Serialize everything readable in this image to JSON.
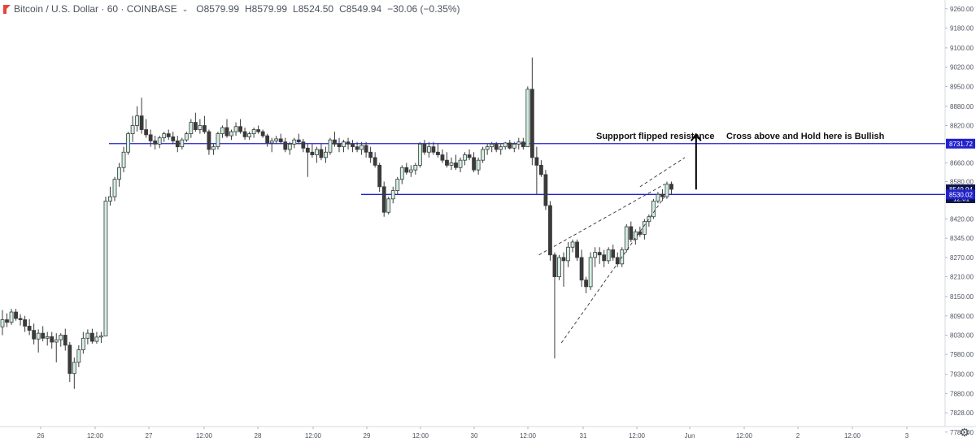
{
  "header": {
    "symbol": "Bitcoin / U.S. Dollar · 60 · COINBASE",
    "open": "O8579.99",
    "high": "H8579.99",
    "low": "L8524.50",
    "close": "C8549.94",
    "change": "−30.06 (−0.35%)"
  },
  "colors": {
    "up": "#d1f0e2",
    "down": "#3a3a3a",
    "wick": "#3a3a3a",
    "level_line": "#2222cc",
    "grid": "#f0f3fa",
    "axis_text": "#4c525e",
    "price_tag": "#0a1450"
  },
  "icons": {
    "settings": "gear-icon",
    "logo": "tradingview-logo-icon"
  },
  "chart_data": {
    "type": "candlestick",
    "title": "",
    "y_ticks": [
      9260,
      9180,
      9100,
      9020,
      8950,
      8880,
      8820,
      8731.72,
      8660,
      8580,
      8530.02,
      8420,
      8345,
      8270,
      8210,
      8150,
      8090,
      8030,
      7980,
      7930,
      7880,
      7828,
      7780
    ],
    "y_tick_labels": [
      "9260.00",
      "9180.00",
      "9100.00",
      "9020.00",
      "8950.00",
      "8880.00",
      "8820.00",
      "8731.72",
      "8660.00",
      "8580.00",
      "8530.02",
      "8420.00",
      "8345.00",
      "8270.00",
      "8210.00",
      "8150.00",
      "8090.00",
      "8030.00",
      "7980.00",
      "7930.00",
      "7880.00",
      "7828.00",
      "7780.00"
    ],
    "x_tick_labels": [
      "26",
      "12:00",
      "27",
      "12:00",
      "28",
      "12:00",
      "29",
      "12:00",
      "30",
      "12:00",
      "31",
      "12:00",
      "Jun",
      "12:00",
      "2",
      "12:00",
      "3"
    ],
    "price_labels": [
      {
        "value": 8731.72,
        "text": "8731.72",
        "style": "level"
      },
      {
        "value": 8549.94,
        "text": "8549.94",
        "style": "last"
      },
      {
        "value": 8530.02,
        "text": "8530.02",
        "style": "level"
      }
    ],
    "countdown": "12:01",
    "horizontal_lines": [
      8731.72,
      8530.02
    ],
    "candles": [
      [
        8056,
        8108,
        8030,
        8078
      ],
      [
        8078,
        8098,
        8055,
        8070
      ],
      [
        8070,
        8112,
        8062,
        8102
      ],
      [
        8102,
        8112,
        8075,
        8082
      ],
      [
        8082,
        8095,
        8060,
        8078
      ],
      [
        8078,
        8090,
        8040,
        8058
      ],
      [
        8058,
        8080,
        8030,
        8045
      ],
      [
        8045,
        8066,
        8006,
        8020
      ],
      [
        8020,
        8048,
        7985,
        8036
      ],
      [
        8036,
        8058,
        8014,
        8022
      ],
      [
        8022,
        8040,
        8003,
        8026
      ],
      [
        8026,
        8040,
        7995,
        8012
      ],
      [
        8012,
        8036,
        7960,
        8018
      ],
      [
        8018,
        8036,
        8000,
        8030
      ],
      [
        8030,
        8050,
        7990,
        8004
      ],
      [
        8004,
        8012,
        7910,
        7932
      ],
      [
        7932,
        7972,
        7892,
        7960
      ],
      [
        7960,
        8004,
        7948,
        7992
      ],
      [
        7992,
        8040,
        7982,
        8022
      ],
      [
        8022,
        8048,
        8006,
        8036
      ],
      [
        8036,
        8050,
        8008,
        8014
      ],
      [
        8014,
        8040,
        8008,
        8025
      ],
      [
        8025,
        8040,
        8010,
        8028
      ],
      [
        8028,
        8520,
        8028,
        8500
      ],
      [
        8500,
        8560,
        8480,
        8520
      ],
      [
        8520,
        8600,
        8500,
        8590
      ],
      [
        8590,
        8660,
        8560,
        8640
      ],
      [
        8640,
        8720,
        8620,
        8700
      ],
      [
        8700,
        8790,
        8690,
        8780
      ],
      [
        8780,
        8850,
        8740,
        8820
      ],
      [
        8820,
        8880,
        8790,
        8850
      ],
      [
        8850,
        8910,
        8780,
        8800
      ],
      [
        8800,
        8840,
        8760,
        8775
      ],
      [
        8775,
        8800,
        8720,
        8745
      ],
      [
        8745,
        8770,
        8710,
        8730
      ],
      [
        8730,
        8770,
        8715,
        8760
      ],
      [
        8760,
        8790,
        8740,
        8780
      ],
      [
        8780,
        8800,
        8750,
        8765
      ],
      [
        8765,
        8790,
        8730,
        8745
      ],
      [
        8745,
        8770,
        8700,
        8720
      ],
      [
        8720,
        8760,
        8710,
        8750
      ],
      [
        8750,
        8790,
        8740,
        8780
      ],
      [
        8780,
        8840,
        8760,
        8830
      ],
      [
        8830,
        8860,
        8790,
        8800
      ],
      [
        8800,
        8840,
        8780,
        8820
      ],
      [
        8820,
        8850,
        8780,
        8790
      ],
      [
        8790,
        8800,
        8690,
        8710
      ],
      [
        8710,
        8730,
        8690,
        8720
      ],
      [
        8720,
        8790,
        8710,
        8780
      ],
      [
        8780,
        8820,
        8760,
        8810
      ],
      [
        8810,
        8840,
        8760,
        8770
      ],
      [
        8770,
        8800,
        8750,
        8790
      ],
      [
        8790,
        8830,
        8770,
        8815
      ],
      [
        8815,
        8840,
        8780,
        8790
      ],
      [
        8790,
        8810,
        8750,
        8765
      ],
      [
        8765,
        8790,
        8750,
        8780
      ],
      [
        8780,
        8810,
        8760,
        8800
      ],
      [
        8800,
        8820,
        8780,
        8790
      ],
      [
        8790,
        8800,
        8760,
        8770
      ],
      [
        8770,
        8780,
        8720,
        8735
      ],
      [
        8735,
        8760,
        8700,
        8745
      ],
      [
        8745,
        8770,
        8730,
        8755
      ],
      [
        8755,
        8780,
        8730,
        8740
      ],
      [
        8740,
        8760,
        8700,
        8710
      ],
      [
        8710,
        8740,
        8690,
        8730
      ],
      [
        8730,
        8760,
        8715,
        8750
      ],
      [
        8750,
        8780,
        8730,
        8740
      ],
      [
        8740,
        8755,
        8700,
        8715
      ],
      [
        8715,
        8730,
        8600,
        8700
      ],
      [
        8700,
        8730,
        8680,
        8690
      ],
      [
        8690,
        8720,
        8660,
        8710
      ],
      [
        8710,
        8730,
        8670,
        8680
      ],
      [
        8680,
        8720,
        8660,
        8700
      ],
      [
        8700,
        8760,
        8690,
        8750
      ],
      [
        8750,
        8790,
        8720,
        8730
      ],
      [
        8730,
        8760,
        8700,
        8720
      ],
      [
        8720,
        8750,
        8700,
        8740
      ],
      [
        8740,
        8760,
        8710,
        8730
      ],
      [
        8730,
        8750,
        8700,
        8720
      ],
      [
        8720,
        8740,
        8700,
        8710
      ],
      [
        8710,
        8740,
        8690,
        8725
      ],
      [
        8725,
        8740,
        8680,
        8700
      ],
      [
        8700,
        8720,
        8660,
        8680
      ],
      [
        8680,
        8700,
        8640,
        8650
      ],
      [
        8650,
        8660,
        8540,
        8560
      ],
      [
        8560,
        8580,
        8430,
        8450
      ],
      [
        8450,
        8520,
        8440,
        8510
      ],
      [
        8510,
        8560,
        8490,
        8545
      ],
      [
        8545,
        8600,
        8530,
        8590
      ],
      [
        8590,
        8650,
        8570,
        8640
      ],
      [
        8640,
        8660,
        8610,
        8620
      ],
      [
        8620,
        8650,
        8600,
        8630
      ],
      [
        8630,
        8660,
        8610,
        8650
      ],
      [
        8650,
        8740,
        8640,
        8730
      ],
      [
        8730,
        8750,
        8690,
        8700
      ],
      [
        8700,
        8740,
        8680,
        8720
      ],
      [
        8720,
        8740,
        8690,
        8700
      ],
      [
        8700,
        8730,
        8680,
        8690
      ],
      [
        8690,
        8710,
        8660,
        8670
      ],
      [
        8670,
        8700,
        8640,
        8650
      ],
      [
        8650,
        8680,
        8630,
        8660
      ],
      [
        8660,
        8690,
        8630,
        8640
      ],
      [
        8640,
        8680,
        8620,
        8670
      ],
      [
        8670,
        8700,
        8650,
        8690
      ],
      [
        8690,
        8710,
        8670,
        8680
      ],
      [
        8680,
        8700,
        8620,
        8630
      ],
      [
        8630,
        8680,
        8610,
        8670
      ],
      [
        8670,
        8720,
        8660,
        8710
      ],
      [
        8710,
        8730,
        8690,
        8720
      ],
      [
        8720,
        8740,
        8700,
        8730
      ],
      [
        8730,
        8740,
        8700,
        8710
      ],
      [
        8710,
        8730,
        8690,
        8720
      ],
      [
        8720,
        8740,
        8710,
        8735
      ],
      [
        8735,
        8750,
        8710,
        8715
      ],
      [
        8715,
        8740,
        8700,
        8730
      ],
      [
        8730,
        8760,
        8710,
        8740
      ],
      [
        8740,
        8760,
        8710,
        8720
      ],
      [
        8720,
        8950,
        8720,
        8940
      ],
      [
        8940,
        9060,
        8650,
        8680
      ],
      [
        8680,
        8720,
        8530,
        8650
      ],
      [
        8650,
        8670,
        8600,
        8610
      ],
      [
        8610,
        8630,
        8460,
        8480
      ],
      [
        8480,
        8500,
        8260,
        8280
      ],
      [
        8280,
        8290,
        7970,
        8210
      ],
      [
        8210,
        8280,
        8200,
        8270
      ],
      [
        8270,
        8290,
        8180,
        8260
      ],
      [
        8260,
        8330,
        8240,
        8310
      ],
      [
        8310,
        8340,
        8290,
        8330
      ],
      [
        8330,
        8340,
        8260,
        8270
      ],
      [
        8270,
        8300,
        8180,
        8200
      ],
      [
        8200,
        8210,
        8160,
        8180
      ],
      [
        8180,
        8290,
        8170,
        8270
      ],
      [
        8270,
        8310,
        8240,
        8290
      ],
      [
        8290,
        8310,
        8250,
        8280
      ],
      [
        8280,
        8300,
        8240,
        8260
      ],
      [
        8260,
        8310,
        8250,
        8300
      ],
      [
        8300,
        8320,
        8260,
        8270
      ],
      [
        8270,
        8290,
        8240,
        8250
      ],
      [
        8250,
        8310,
        8240,
        8300
      ],
      [
        8300,
        8400,
        8290,
        8390
      ],
      [
        8390,
        8410,
        8330,
        8340
      ],
      [
        8340,
        8380,
        8320,
        8370
      ],
      [
        8370,
        8390,
        8350,
        8360
      ],
      [
        8360,
        8420,
        8340,
        8410
      ],
      [
        8410,
        8440,
        8390,
        8430
      ],
      [
        8430,
        8510,
        8420,
        8500
      ],
      [
        8500,
        8540,
        8490,
        8530
      ],
      [
        8530,
        8550,
        8500,
        8520
      ],
      [
        8520,
        8580,
        8510,
        8570
      ],
      [
        8570,
        8580,
        8530,
        8550
      ]
    ],
    "trend_lines": [
      {
        "from": [
          119.5,
          8280
        ],
        "to": [
          147.5,
          8570
        ],
        "style": "dashed"
      },
      {
        "from": [
          124.5,
          8010
        ],
        "to": [
          147.5,
          8520
        ],
        "style": "dashed"
      },
      {
        "from": [
          142,
          8560
        ],
        "to": [
          152,
          8680
        ],
        "style": "dashed"
      }
    ],
    "annotations": [
      {
        "text": "Suppport flipped resistance",
        "x": 131.5,
        "y": 8760
      },
      {
        "text": "Cross above and Hold here is Bullish",
        "x": 166.5,
        "y": 8760
      }
    ],
    "arrow": {
      "x": 154.5,
      "from": 8530,
      "to": 8700
    }
  }
}
